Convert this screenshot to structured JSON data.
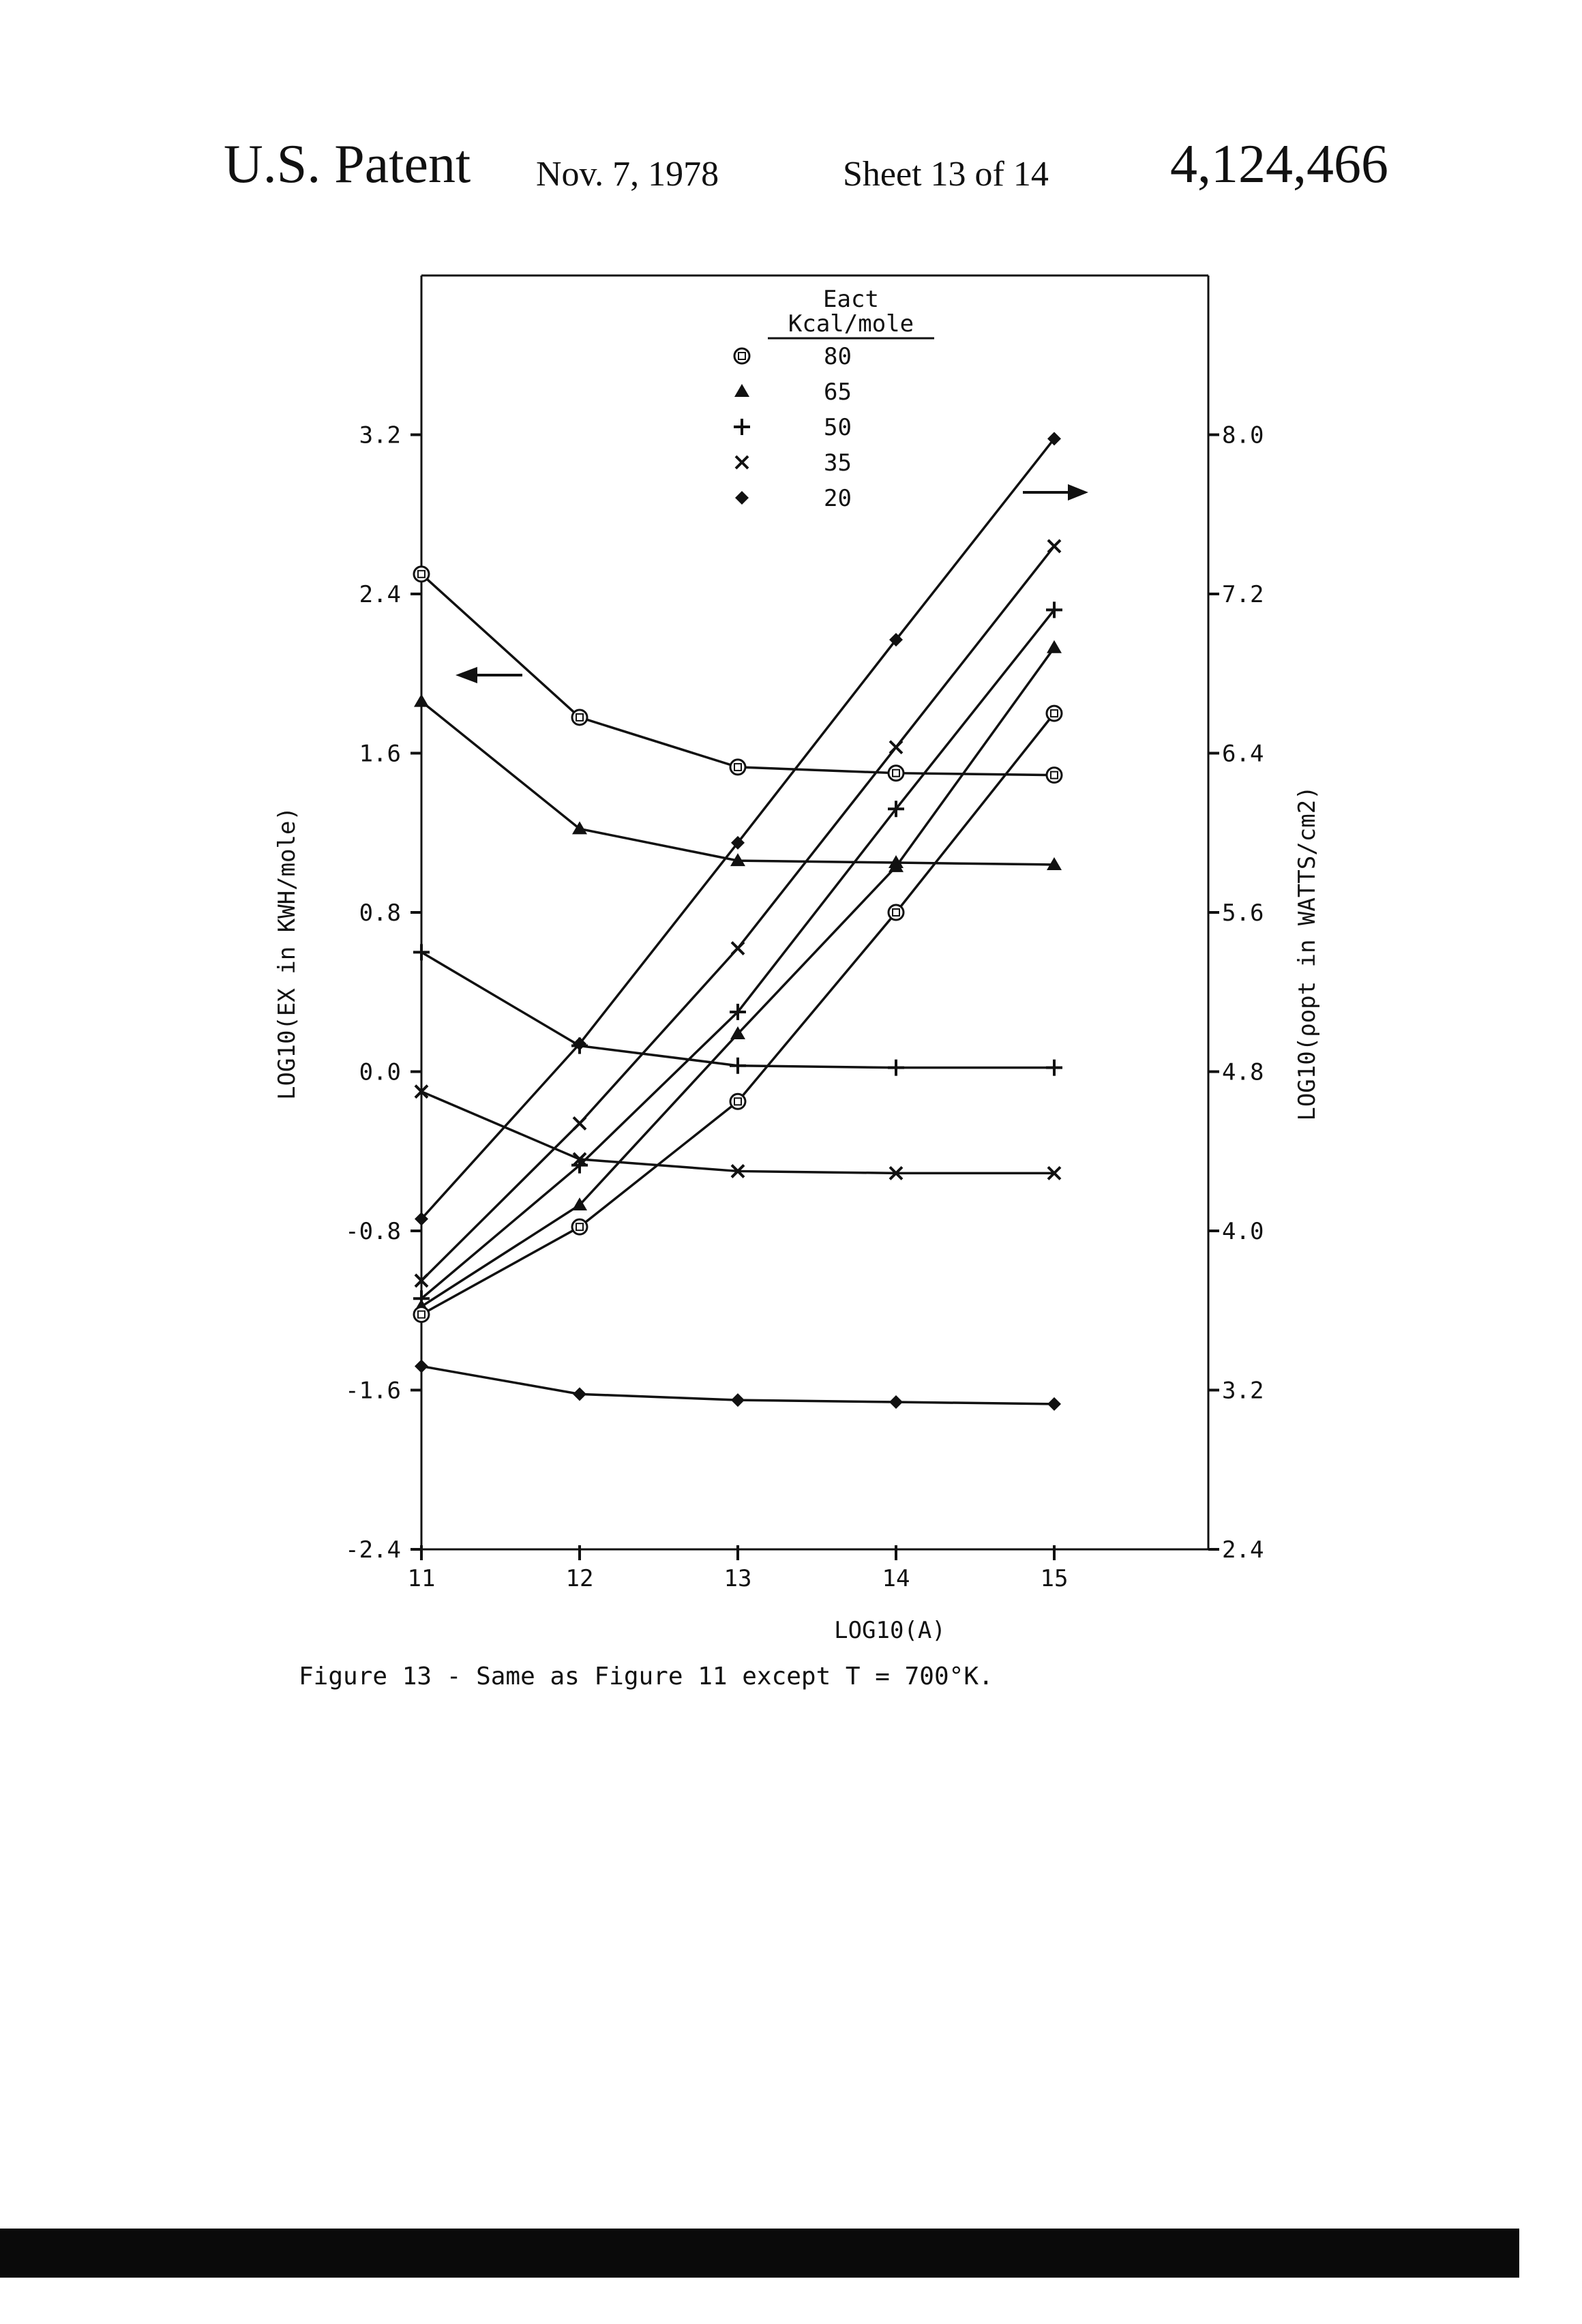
{
  "header": {
    "title": "U.S. Patent",
    "date": "Nov. 7, 1978",
    "sheet": "Sheet 13 of 14",
    "number": "4,124,466"
  },
  "caption": "Figure 13 - Same as Figure 11 except T = 700°K.",
  "chart_data": {
    "type": "line",
    "xlabel": "LOG10(A)",
    "ylabel": "LOG10(EX in KWH/mole)",
    "y2label": "LOG10(ρopt in WATTS/cm2)",
    "xlim": [
      11,
      15
    ],
    "ylim": [
      -2.4,
      4.0
    ],
    "y2lim": [
      2.4,
      8.8
    ],
    "x_ticks": [
      11,
      12,
      13,
      14,
      15
    ],
    "x_tick_labels": [
      "11",
      "12",
      "13",
      "14",
      "15"
    ],
    "y_ticks": [
      -2.4,
      -1.6,
      -0.8,
      0.0,
      0.8,
      1.6,
      2.4,
      3.2
    ],
    "y_tick_labels": [
      "-2.4",
      "-1.6",
      "-0.8",
      "0.0",
      "0.8",
      "1.6",
      "2.4",
      "3.2"
    ],
    "y2_ticks": [
      2.4,
      3.2,
      4.0,
      4.8,
      5.6,
      6.4,
      7.2,
      8.0
    ],
    "y2_tick_labels": [
      "2.4",
      "3.2",
      "4.0",
      "4.8",
      "5.6",
      "6.4",
      "7.2",
      "8.0"
    ],
    "legend": {
      "title": "Eact",
      "subtitle": "Kcal/mole",
      "placement": "top-center",
      "entries": [
        {
          "marker": "circle-square",
          "label": "80"
        },
        {
          "marker": "triangle",
          "label": "65"
        },
        {
          "marker": "plus",
          "label": "50"
        },
        {
          "marker": "cross",
          "label": "35"
        },
        {
          "marker": "diamond",
          "label": "20"
        }
      ]
    },
    "x": [
      11,
      12,
      13,
      14,
      15
    ],
    "energy_axis": "left",
    "power_axis": "right",
    "series": [
      {
        "name": "80",
        "marker": "circle-square",
        "axis": "left",
        "values": [
          2.5,
          1.78,
          1.53,
          1.5,
          1.49
        ]
      },
      {
        "name": "65",
        "marker": "triangle",
        "axis": "left",
        "values": [
          1.86,
          1.22,
          1.06,
          1.05,
          1.04
        ]
      },
      {
        "name": "50",
        "marker": "plus",
        "axis": "left",
        "values": [
          0.6,
          0.13,
          0.03,
          0.02,
          0.02
        ]
      },
      {
        "name": "35",
        "marker": "cross",
        "axis": "left",
        "values": [
          -0.1,
          -0.44,
          -0.5,
          -0.51,
          -0.51
        ]
      },
      {
        "name": "20",
        "marker": "diamond",
        "axis": "left",
        "values": [
          -1.48,
          -1.62,
          -1.65,
          -1.66,
          -1.67
        ]
      },
      {
        "name": "20",
        "marker": "diamond",
        "axis": "right",
        "values": [
          4.06,
          4.94,
          5.95,
          6.97,
          7.98
        ]
      },
      {
        "name": "35",
        "marker": "cross",
        "axis": "right",
        "values": [
          3.75,
          4.54,
          5.42,
          6.43,
          7.44
        ]
      },
      {
        "name": "50",
        "marker": "plus",
        "axis": "right",
        "values": [
          3.66,
          4.33,
          5.1,
          6.12,
          7.12
        ]
      },
      {
        "name": "65",
        "marker": "triangle",
        "axis": "right",
        "values": [
          3.62,
          4.13,
          4.99,
          5.83,
          6.93
        ]
      },
      {
        "name": "80",
        "marker": "circle-square",
        "axis": "right",
        "values": [
          3.58,
          4.02,
          4.65,
          5.6,
          6.6
        ]
      }
    ]
  }
}
